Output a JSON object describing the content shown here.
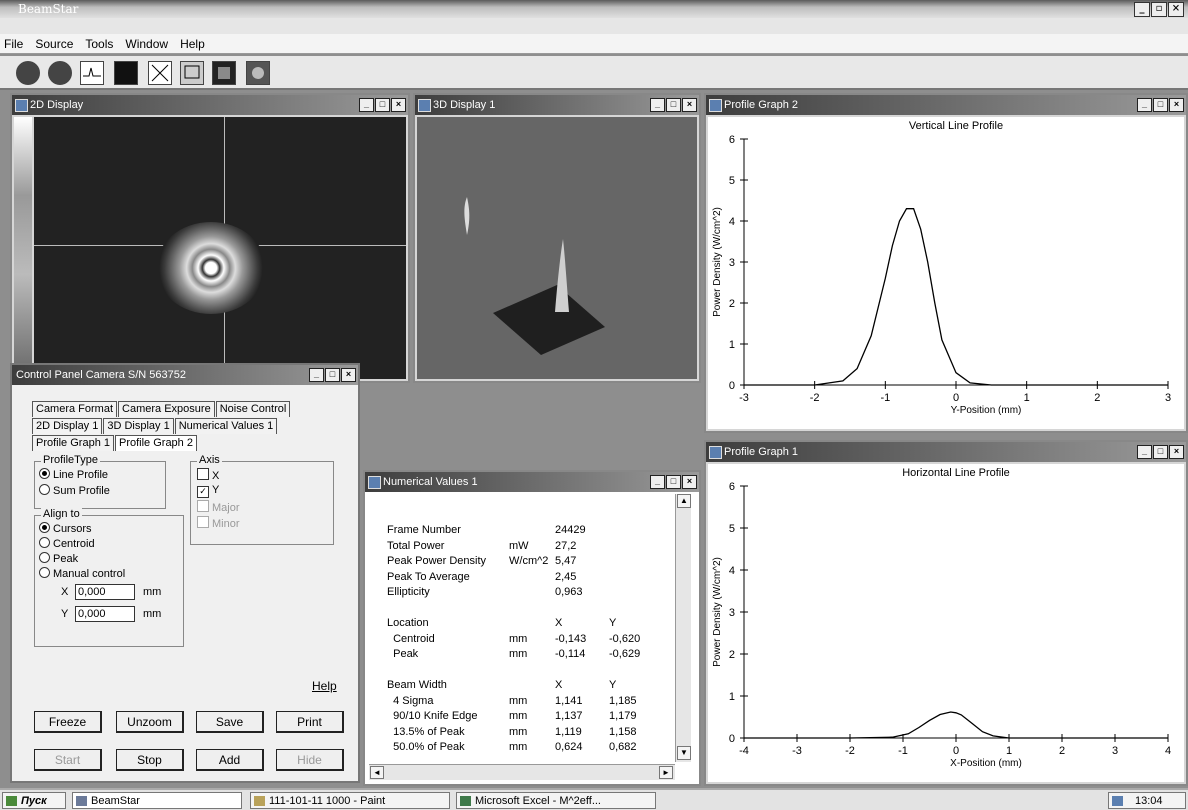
{
  "app": {
    "title": "BeamStar"
  },
  "menu": [
    "File",
    "Source",
    "Tools",
    "Window",
    "Help"
  ],
  "windows": {
    "display2d": {
      "title": "2D Display"
    },
    "display3d": {
      "title": "3D Display 1"
    },
    "profile2": {
      "title": "Profile Graph 2"
    },
    "profile1": {
      "title": "Profile Graph 1"
    },
    "numerical": {
      "title": "Numerical Values 1"
    },
    "control": {
      "title": "Control Panel Camera S/N 563752"
    }
  },
  "control_panel": {
    "tabs_row1": [
      "Camera Format",
      "Camera Exposure",
      "Noise Control"
    ],
    "tabs_row2": [
      "2D Display 1",
      "3D Display 1",
      "Numerical Values 1"
    ],
    "tabs_row3": [
      "Profile Graph 1",
      "Profile Graph 2"
    ],
    "profile_type": {
      "legend": "ProfileType",
      "options": [
        "Line Profile",
        "Sum Profile"
      ],
      "selected": "Line Profile"
    },
    "axis": {
      "legend": "Axis",
      "options": [
        {
          "label": "X",
          "checked": false,
          "enabled": true
        },
        {
          "label": "Y",
          "checked": true,
          "enabled": true
        },
        {
          "label": "Major",
          "checked": false,
          "enabled": false
        },
        {
          "label": "Minor",
          "checked": false,
          "enabled": false
        }
      ]
    },
    "align_to": {
      "legend": "Align to",
      "options": [
        "Cursors",
        "Centroid",
        "Peak",
        "Manual control"
      ],
      "selected": "Cursors"
    },
    "manual": {
      "x_label": "X",
      "x_value": "0,000",
      "y_label": "Y",
      "y_value": "0,000",
      "unit": "mm"
    },
    "help": "Help",
    "buttons_row1": [
      "Freeze",
      "Unzoom",
      "Save",
      "Print"
    ],
    "buttons_row2": [
      {
        "label": "Start",
        "enabled": false
      },
      {
        "label": "Stop",
        "enabled": true
      },
      {
        "label": "Add",
        "enabled": true
      },
      {
        "label": "Hide",
        "enabled": false
      }
    ]
  },
  "numerical": {
    "rows": [
      {
        "label": "Frame Number",
        "unit": "",
        "v1": "24429",
        "v2": ""
      },
      {
        "label": "Total Power",
        "unit": "mW",
        "v1": "27,2",
        "v2": ""
      },
      {
        "label": "Peak Power Density",
        "unit": "W/cm^2",
        "v1": "5,47",
        "v2": ""
      },
      {
        "label": "Peak To Average",
        "unit": "",
        "v1": "2,45",
        "v2": ""
      },
      {
        "label": "Ellipticity",
        "unit": "",
        "v1": "0,963",
        "v2": ""
      },
      {
        "label": "",
        "unit": "",
        "v1": "",
        "v2": ""
      },
      {
        "label": "Location",
        "unit": "",
        "v1": "X",
        "v2": "Y"
      },
      {
        "label": "  Centroid",
        "unit": "mm",
        "v1": "-0,143",
        "v2": "-0,620"
      },
      {
        "label": "  Peak",
        "unit": "mm",
        "v1": "-0,114",
        "v2": "-0,629"
      },
      {
        "label": "",
        "unit": "",
        "v1": "",
        "v2": ""
      },
      {
        "label": "Beam Width",
        "unit": "",
        "v1": "X",
        "v2": "Y"
      },
      {
        "label": "  4 Sigma",
        "unit": "mm",
        "v1": "1,141",
        "v2": "1,185"
      },
      {
        "label": "  90/10 Knife Edge",
        "unit": "mm",
        "v1": "1,137",
        "v2": "1,179"
      },
      {
        "label": "  13.5% of Peak",
        "unit": "mm",
        "v1": "1,119",
        "v2": "1,158"
      },
      {
        "label": "  50.0% of Peak",
        "unit": "mm",
        "v1": "0,624",
        "v2": "0,682"
      }
    ]
  },
  "chart_data": [
    {
      "type": "line",
      "title": "Vertical Line Profile",
      "xlabel": "Y-Position (mm)",
      "ylabel": "Power Density (W/cm^2)",
      "xlim": [
        -3,
        3
      ],
      "ylim": [
        0,
        6
      ],
      "xticks": [
        -3,
        -2,
        -1,
        0,
        1,
        2,
        3
      ],
      "yticks": [
        0,
        1,
        2,
        3,
        4,
        5,
        6
      ],
      "x": [
        -3.0,
        -2.0,
        -1.6,
        -1.4,
        -1.2,
        -1.0,
        -0.9,
        -0.8,
        -0.7,
        -0.6,
        -0.5,
        -0.4,
        -0.3,
        -0.2,
        0.0,
        0.2,
        0.5,
        1.0,
        3.0
      ],
      "y": [
        0.0,
        0.0,
        0.1,
        0.4,
        1.2,
        2.6,
        3.4,
        4.0,
        4.3,
        4.3,
        3.8,
        3.0,
        2.0,
        1.1,
        0.3,
        0.05,
        0.0,
        0.0,
        0.0
      ]
    },
    {
      "type": "line",
      "title": "Horizontal Line Profile",
      "xlabel": "X-Position (mm)",
      "ylabel": "Power Density (W/cm^2)",
      "xlim": [
        -4,
        4
      ],
      "ylim": [
        0,
        6
      ],
      "xticks": [
        -4,
        -3,
        -2,
        -1,
        0,
        1,
        2,
        3,
        4
      ],
      "yticks": [
        0,
        1,
        2,
        3,
        4,
        5,
        6
      ],
      "x": [
        -4.0,
        -2.0,
        -1.2,
        -0.9,
        -0.7,
        -0.5,
        -0.3,
        -0.1,
        0.0,
        0.1,
        0.3,
        0.5,
        0.7,
        1.0,
        4.0
      ],
      "y": [
        0.0,
        0.0,
        0.02,
        0.1,
        0.25,
        0.42,
        0.56,
        0.62,
        0.6,
        0.55,
        0.35,
        0.15,
        0.05,
        0.0,
        0.0
      ]
    }
  ],
  "taskbar": {
    "start": "Пуск",
    "items": [
      "BeamStar",
      "111-101-11 1000 - Paint",
      "Microsoft Excel - M^2eff..."
    ],
    "clock": "13:04"
  }
}
